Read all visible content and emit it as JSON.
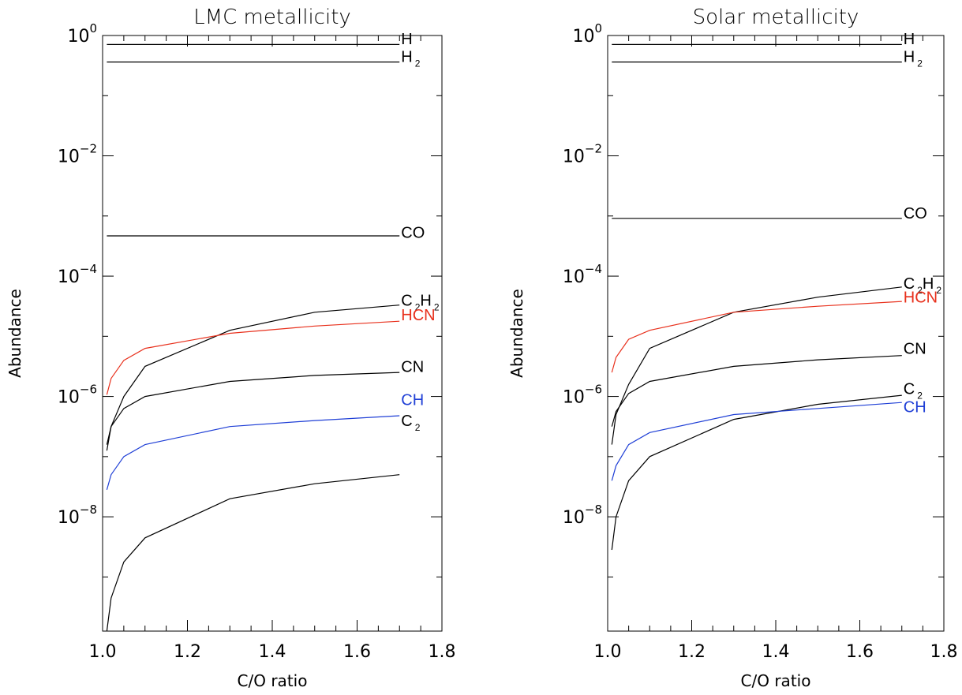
{
  "chart_data": [
    {
      "type": "line",
      "title": "LMC metallicity",
      "xlabel": "C/O ratio",
      "ylabel": "Abundance",
      "xlim": [
        1.0,
        1.8
      ],
      "ylim_log10": [
        -9.9,
        0.0
      ],
      "yscale": "log",
      "x_ticks": [
        "1.0",
        "1.2",
        "1.4",
        "1.6",
        "1.8"
      ],
      "y_ticks": [
        {
          "exp": 0,
          "label_base": "10",
          "label_exp": "0"
        },
        {
          "exp": -2,
          "label_base": "10",
          "label_exp": "−2"
        },
        {
          "exp": -4,
          "label_base": "10",
          "label_exp": "−4"
        },
        {
          "exp": -6,
          "label_base": "10",
          "label_exp": "−6"
        },
        {
          "exp": -8,
          "label_base": "10",
          "label_exp": "−8"
        }
      ],
      "series": [
        {
          "id": "H",
          "label": "H",
          "sub": "",
          "color": "#000000",
          "x": [
            1.01,
            1.7
          ],
          "log10_y": [
            -0.15,
            -0.15
          ]
        },
        {
          "id": "H2",
          "label": "H",
          "sub": "2",
          "color": "#000000",
          "x": [
            1.01,
            1.7
          ],
          "log10_y": [
            -0.44,
            -0.44
          ]
        },
        {
          "id": "CO",
          "label": "CO",
          "sub": "",
          "color": "#000000",
          "x": [
            1.01,
            1.7
          ],
          "log10_y": [
            -3.33,
            -3.33
          ]
        },
        {
          "id": "C2H2",
          "label": "C",
          "sub": "2",
          "label2": "H",
          "sub2": "2",
          "color": "#000000",
          "x": [
            1.01,
            1.02,
            1.05,
            1.1,
            1.3,
            1.5,
            1.7
          ],
          "log10_y": [
            -6.8,
            -6.5,
            -6.0,
            -5.5,
            -4.9,
            -4.6,
            -4.48
          ]
        },
        {
          "id": "HCN",
          "label": "HCN",
          "sub": "",
          "color": "#e8301c",
          "x": [
            1.01,
            1.02,
            1.05,
            1.1,
            1.3,
            1.5,
            1.7
          ],
          "log10_y": [
            -5.97,
            -5.7,
            -5.4,
            -5.2,
            -4.95,
            -4.83,
            -4.75
          ]
        },
        {
          "id": "CN",
          "label": "CN",
          "sub": "",
          "color": "#000000",
          "x": [
            1.01,
            1.02,
            1.05,
            1.1,
            1.3,
            1.5,
            1.7
          ],
          "log10_y": [
            -6.9,
            -6.5,
            -6.2,
            -6.0,
            -5.75,
            -5.65,
            -5.6
          ]
        },
        {
          "id": "CH",
          "label": "CH",
          "sub": "",
          "color": "#1f3fd6",
          "x": [
            1.01,
            1.02,
            1.05,
            1.1,
            1.3,
            1.5,
            1.7
          ],
          "log10_y": [
            -7.55,
            -7.3,
            -7.0,
            -6.8,
            -6.5,
            -6.4,
            -6.32
          ]
        },
        {
          "id": "C2",
          "label": "C",
          "sub": "2",
          "color": "#000000",
          "x": [
            1.01,
            1.02,
            1.05,
            1.1,
            1.3,
            1.5,
            1.7
          ],
          "log10_y": [
            -9.9,
            -9.35,
            -8.75,
            -8.35,
            -7.7,
            -7.45,
            -7.3
          ]
        }
      ],
      "annotations": [
        {
          "series": "H",
          "log10_y": -0.05
        },
        {
          "series": "H2",
          "log10_y": -0.35
        },
        {
          "series": "CO",
          "log10_y": -3.27
        },
        {
          "series": "C2H2",
          "log10_y": -4.4
        },
        {
          "series": "HCN",
          "log10_y": -4.64
        },
        {
          "series": "CN",
          "log10_y": -5.5
        },
        {
          "series": "CH",
          "log10_y": -6.05
        },
        {
          "series": "C2",
          "log10_y": -6.4
        }
      ]
    },
    {
      "type": "line",
      "title": "Solar metallicity",
      "xlabel": "C/O ratio",
      "ylabel": "Abundance",
      "xlim": [
        1.0,
        1.8
      ],
      "ylim_log10": [
        -9.9,
        0.0
      ],
      "yscale": "log",
      "x_ticks": [
        "1.0",
        "1.2",
        "1.4",
        "1.6",
        "1.8"
      ],
      "y_ticks": [
        {
          "exp": 0,
          "label_base": "10",
          "label_exp": "0"
        },
        {
          "exp": -2,
          "label_base": "10",
          "label_exp": "−2"
        },
        {
          "exp": -4,
          "label_base": "10",
          "label_exp": "−4"
        },
        {
          "exp": -6,
          "label_base": "10",
          "label_exp": "−6"
        },
        {
          "exp": -8,
          "label_base": "10",
          "label_exp": "−8"
        }
      ],
      "series": [
        {
          "id": "H",
          "label": "H",
          "sub": "",
          "color": "#000000",
          "x": [
            1.01,
            1.7
          ],
          "log10_y": [
            -0.15,
            -0.15
          ]
        },
        {
          "id": "H2",
          "label": "H",
          "sub": "2",
          "color": "#000000",
          "x": [
            1.01,
            1.7
          ],
          "log10_y": [
            -0.44,
            -0.44
          ]
        },
        {
          "id": "CO",
          "label": "CO",
          "sub": "",
          "color": "#000000",
          "x": [
            1.01,
            1.7
          ],
          "log10_y": [
            -3.04,
            -3.04
          ]
        },
        {
          "id": "C2H2",
          "label": "C",
          "sub": "2",
          "label2": "H",
          "sub2": "2",
          "color": "#000000",
          "x": [
            1.01,
            1.02,
            1.05,
            1.1,
            1.3,
            1.5,
            1.7
          ],
          "log10_y": [
            -6.8,
            -6.3,
            -5.8,
            -5.2,
            -4.6,
            -4.35,
            -4.18
          ]
        },
        {
          "id": "HCN",
          "label": "HCN",
          "sub": "",
          "color": "#e8301c",
          "x": [
            1.01,
            1.02,
            1.05,
            1.1,
            1.3,
            1.5,
            1.7
          ],
          "log10_y": [
            -5.6,
            -5.35,
            -5.05,
            -4.9,
            -4.6,
            -4.5,
            -4.42
          ]
        },
        {
          "id": "CN",
          "label": "CN",
          "sub": "",
          "color": "#000000",
          "x": [
            1.01,
            1.02,
            1.05,
            1.1,
            1.3,
            1.5,
            1.7
          ],
          "log10_y": [
            -6.5,
            -6.25,
            -5.95,
            -5.75,
            -5.5,
            -5.39,
            -5.32
          ]
        },
        {
          "id": "C2",
          "label": "C",
          "sub": "2",
          "color": "#000000",
          "x": [
            1.01,
            1.02,
            1.05,
            1.1,
            1.3,
            1.5,
            1.7
          ],
          "log10_y": [
            -8.55,
            -8.0,
            -7.4,
            -7.0,
            -6.38,
            -6.13,
            -5.98
          ]
        },
        {
          "id": "CH",
          "label": "CH",
          "sub": "",
          "color": "#1f3fd6",
          "x": [
            1.01,
            1.02,
            1.05,
            1.1,
            1.3,
            1.5,
            1.7
          ],
          "log10_y": [
            -7.4,
            -7.15,
            -6.8,
            -6.6,
            -6.3,
            -6.2,
            -6.1
          ]
        }
      ],
      "annotations": [
        {
          "series": "H",
          "log10_y": -0.05
        },
        {
          "series": "H2",
          "log10_y": -0.35
        },
        {
          "series": "CO",
          "log10_y": -2.95
        },
        {
          "series": "C2H2",
          "log10_y": -4.12
        },
        {
          "series": "HCN",
          "log10_y": -4.35
        },
        {
          "series": "CN",
          "log10_y": -5.2
        },
        {
          "series": "C2",
          "log10_y": -5.87
        },
        {
          "series": "CH",
          "log10_y": -6.17
        }
      ]
    }
  ]
}
